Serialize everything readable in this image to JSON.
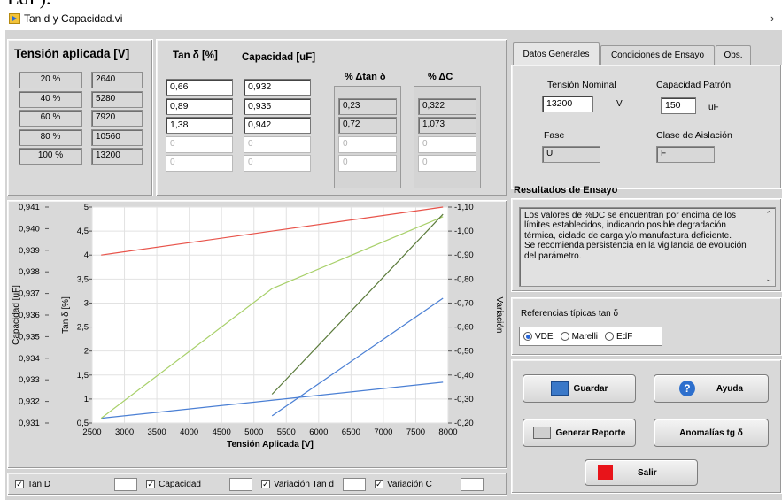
{
  "top_fragment": "EdF).",
  "window": {
    "title": "Tan d y Capacidad.vi"
  },
  "tension": {
    "header": "Tensión aplicada [V]",
    "rows": [
      {
        "pct": "20 %",
        "v": "2640"
      },
      {
        "pct": "40 %",
        "v": "5280"
      },
      {
        "pct": "60 %",
        "v": "7920"
      },
      {
        "pct": "80 %",
        "v": "10560"
      },
      {
        "pct": "100 %",
        "v": "13200"
      }
    ]
  },
  "meas": {
    "tan_header": "Tan δ [%]",
    "cap_header": "Capacidad [uF]",
    "dtan_header": "% Δtan δ",
    "dc_header": "% ΔC",
    "tan": [
      "0,66",
      "0,89",
      "1,38",
      "0",
      "0"
    ],
    "cap": [
      "0,932",
      "0,935",
      "0,942",
      "0",
      "0"
    ],
    "dtan": [
      "",
      "0,23",
      "0,72",
      "0",
      "0"
    ],
    "dc": [
      "",
      "0,322",
      "1,073",
      "0",
      "0"
    ]
  },
  "tabs": [
    {
      "label": "Datos Generales"
    },
    {
      "label": "Condiciones de Ensayo"
    },
    {
      "label": "Obs."
    }
  ],
  "general": {
    "tension_label": "Tensión Nominal",
    "tension_value": "13200",
    "tension_unit": "V",
    "cap_label": "Capacidad Patrón",
    "cap_value": "150",
    "cap_unit": "uF",
    "fase_label": "Fase",
    "fase_value": "U",
    "clase_label": "Clase de Aislación",
    "clase_value": "F"
  },
  "results": {
    "title": "Resultados de Ensayo",
    "text": "Los valores de %DC se encuentran por encima de los límites establecidos, indicando posible degradación térmica, ciclado de carga y/o manufactura deficiente.\nSe recomienda persistencia en la vigilancia de evolución del parámetro."
  },
  "references": {
    "label": "Referencias típicas tan δ",
    "options": [
      "VDE",
      "Marelli",
      "EdF"
    ],
    "selected": "VDE"
  },
  "buttons": {
    "save": "Guardar",
    "help": "Ayuda",
    "report": "Generar Reporte",
    "anomalies": "Anomalías tg δ",
    "exit": "Salir"
  },
  "legend": [
    {
      "label": "Tan D"
    },
    {
      "label": "Capacidad"
    },
    {
      "label": "Variación Tan d"
    },
    {
      "label": "Variación C"
    }
  ],
  "colors": {
    "tan": "#e8534a",
    "cap": "#4a7fd4",
    "vtan": "#a8d06a",
    "vc": "#3a6fd8",
    "extra": "#5a7a3a",
    "exit": "#e8141a"
  },
  "chart_data": {
    "type": "line",
    "xlabel": "Tensión Aplicada [V]",
    "xlim": [
      2500,
      8000
    ],
    "xticks": [
      "2500",
      "3000",
      "3500",
      "4000",
      "4500",
      "5000",
      "5500",
      "6000",
      "6500",
      "7000",
      "7500",
      "8000"
    ],
    "axes": {
      "cap": {
        "label": "Capacidad [uF]",
        "lim": [
          0.931,
          0.941
        ],
        "ticks": [
          "0,941",
          "0,940",
          "0,939",
          "0,938",
          "0,937",
          "0,936",
          "0,935",
          "0,934",
          "0,933",
          "0,932",
          "0,931"
        ]
      },
      "tan": {
        "label": "Tan δ [%]",
        "lim": [
          0.5,
          5
        ],
        "ticks": [
          "5",
          "4,5",
          "4",
          "3,5",
          "3",
          "2,5",
          "2",
          "1,5",
          "1",
          "0,5"
        ]
      },
      "var": {
        "label": "Variación",
        "lim": [
          -0.2,
          -1.1
        ],
        "ticks": [
          "-1,10",
          "-1,00",
          "-0,90",
          "-0,80",
          "-0,70",
          "-0,60",
          "-0,50",
          "-0,40",
          "-0,30",
          "-0,20"
        ]
      }
    },
    "series": [
      {
        "axis": "tan",
        "color": "#e8534a",
        "x": [
          2640,
          7920
        ],
        "y": [
          4.0,
          5.0
        ]
      },
      {
        "axis": "tan",
        "color": "#4a7fd4",
        "x": [
          2640,
          7920
        ],
        "y": [
          0.6,
          1.35
        ]
      },
      {
        "axis": "tan",
        "color": "#a8d06a",
        "x": [
          2640,
          5280,
          7920
        ],
        "y": [
          0.6,
          3.3,
          4.8
        ]
      },
      {
        "axis": "tan",
        "color": "#4a7fd4",
        "x": [
          5280,
          7920
        ],
        "y": [
          0.65,
          3.1
        ]
      },
      {
        "axis": "tan",
        "color": "#5a7a3a",
        "x": [
          5280,
          7920
        ],
        "y": [
          1.1,
          4.85
        ]
      }
    ]
  }
}
